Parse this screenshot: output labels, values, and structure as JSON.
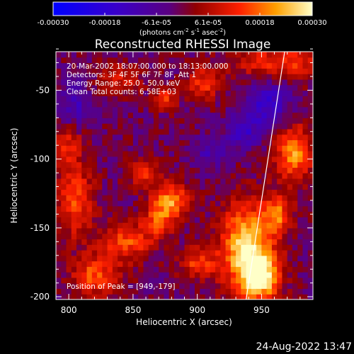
{
  "chart_data": {
    "type": "heatmap",
    "title": "Reconstructed RHESSI Image",
    "xlabel": "Heliocentric X (arcsec)",
    "ylabel": "Heliocentric Y (arcsec)",
    "xlim": [
      790,
      990
    ],
    "ylim": [
      -202,
      -22
    ],
    "xticks": [
      800,
      850,
      900,
      950
    ],
    "yticks": [
      -50,
      -100,
      -150,
      -200
    ],
    "xtick_labels": [
      "800",
      "850",
      "900",
      "950"
    ],
    "ytick_labels": [
      "-50",
      "-100",
      "-150",
      "-200"
    ],
    "colorbar": {
      "range": [
        -0.0003,
        0.0003
      ],
      "tick_labels": [
        "-0.00030",
        "-0.00018",
        "-6.1e-05",
        "6.1e-05",
        "0.00018",
        "0.00030"
      ],
      "unit_text": "(photons cm",
      "unit_sup1": "-2",
      "unit_mid": " s",
      "unit_sup2": "-1",
      "unit_end": " asec",
      "unit_sup3": "-2",
      "unit_close": ")"
    },
    "annotations": {
      "time": "20-Mar-2002 18:07:00.000 to 18:13:00.000",
      "detectors": "Detectors: 3F 4F 5F 6F 7F 8F, Att 1",
      "energy": "Energy Range: 25.0 - 50.0 keV",
      "clean": "Clean     Total counts: 6.58E+03",
      "peak": "Position of Peak = [949,-179]"
    },
    "peak": [
      949,
      -179
    ],
    "limb_line": [
      [
        938,
        -202
      ],
      [
        968,
        -22
      ]
    ],
    "blobs": [
      {
        "x": 938,
        "y": -165,
        "sx": 14,
        "sy": 22,
        "a": 0.00028
      },
      {
        "x": 950,
        "y": -185,
        "sx": 10,
        "sy": 12,
        "a": 0.00026
      },
      {
        "x": 962,
        "y": -140,
        "sx": 8,
        "sy": 10,
        "a": 0.00018
      },
      {
        "x": 975,
        "y": -95,
        "sx": 10,
        "sy": 14,
        "a": 0.00022
      },
      {
        "x": 965,
        "y": -30,
        "sx": 25,
        "sy": 9,
        "a": 0.00015
      },
      {
        "x": 880,
        "y": -130,
        "sx": 10,
        "sy": 8,
        "a": 0.00022
      },
      {
        "x": 870,
        "y": -145,
        "sx": 8,
        "sy": 8,
        "a": 0.00016
      },
      {
        "x": 845,
        "y": -160,
        "sx": 14,
        "sy": 10,
        "a": 0.00016
      },
      {
        "x": 820,
        "y": -185,
        "sx": 12,
        "sy": 10,
        "a": 0.00017
      },
      {
        "x": 805,
        "y": -130,
        "sx": 10,
        "sy": 18,
        "a": 0.00016
      },
      {
        "x": 860,
        "y": -110,
        "sx": 10,
        "sy": 8,
        "a": 0.00012
      },
      {
        "x": 905,
        "y": -45,
        "sx": 9,
        "sy": 8,
        "a": 0.00014
      },
      {
        "x": 875,
        "y": -55,
        "sx": 6,
        "sy": 6,
        "a": 0.00015
      },
      {
        "x": 840,
        "y": -42,
        "sx": 12,
        "sy": 8,
        "a": 0.0001
      },
      {
        "x": 900,
        "y": -175,
        "sx": 10,
        "sy": 8,
        "a": 0.00014
      },
      {
        "x": 800,
        "y": -90,
        "sx": 8,
        "sy": 10,
        "a": 0.00012
      },
      {
        "x": 955,
        "y": -60,
        "sx": 12,
        "sy": 14,
        "a": -0.00014
      },
      {
        "x": 935,
        "y": -80,
        "sx": 8,
        "sy": 8,
        "a": -0.00012
      },
      {
        "x": 805,
        "y": -60,
        "sx": 8,
        "sy": 12,
        "a": -0.0001
      },
      {
        "x": 910,
        "y": -95,
        "sx": 10,
        "sy": 8,
        "a": -8e-05
      }
    ]
  }
}
